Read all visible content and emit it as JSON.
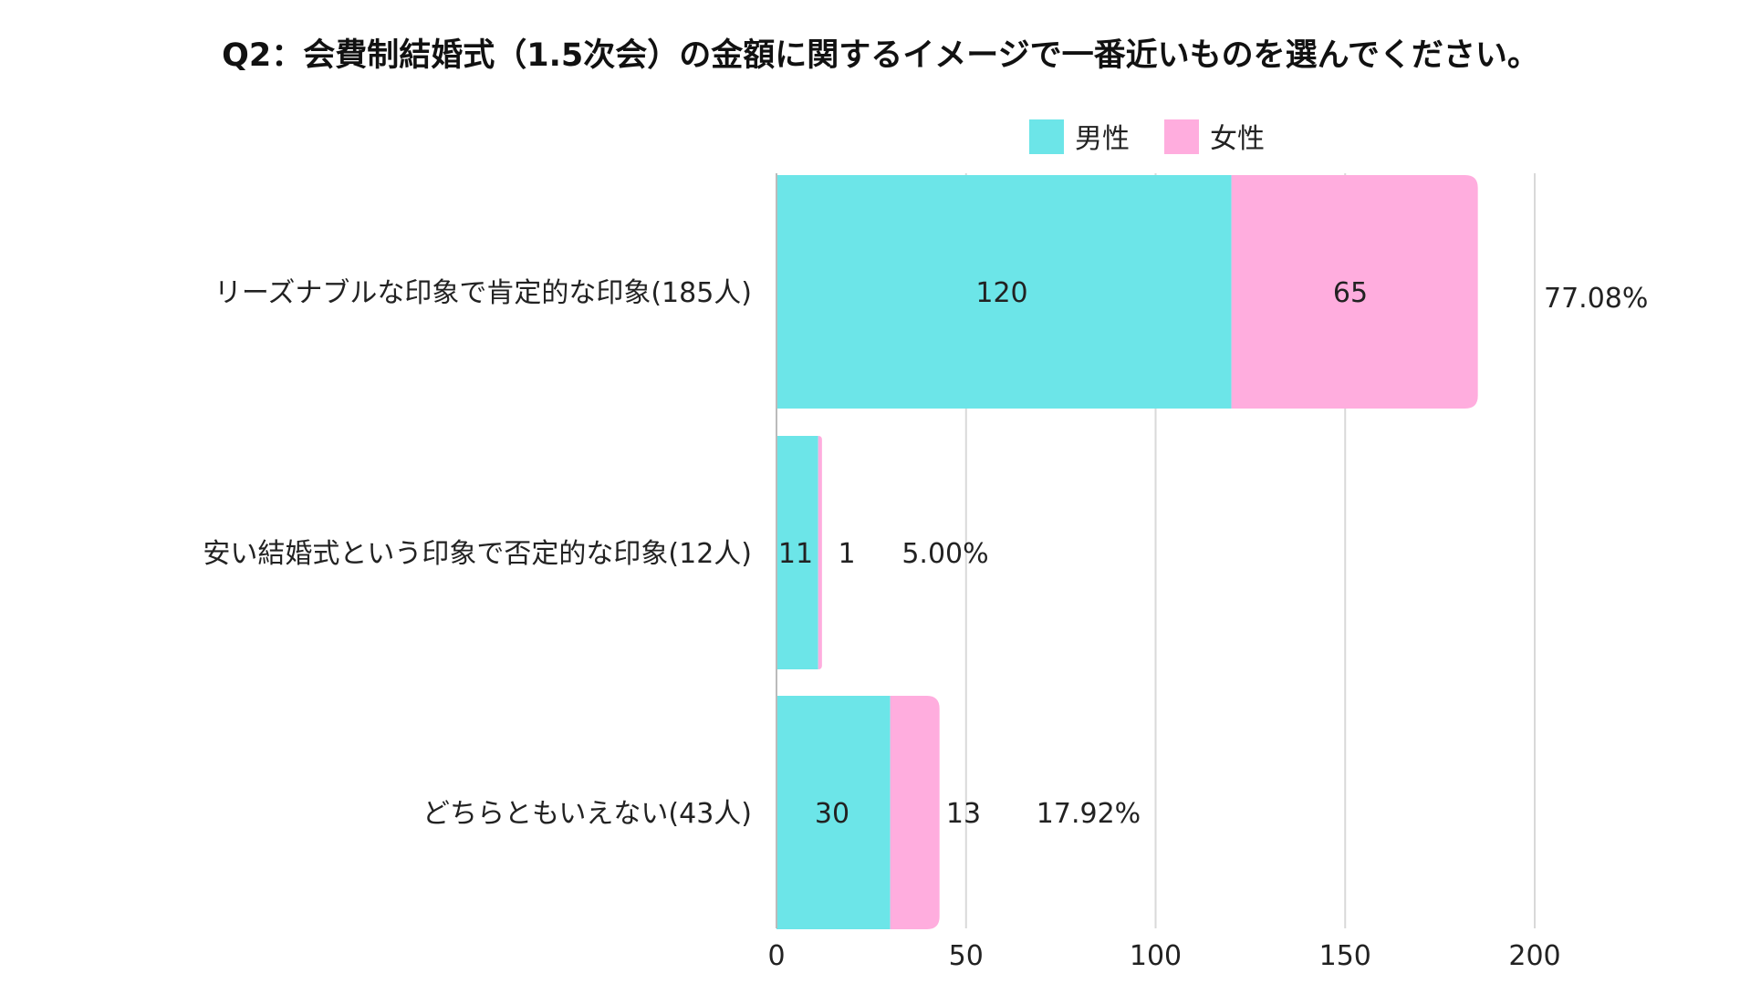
{
  "chart_data": {
    "type": "bar",
    "orientation": "horizontal",
    "stacked": true,
    "title": "Q2：会費制結婚式（1.5次会）の金額に関するイメージで一番近いものを選んでください。",
    "categories": [
      "リーズナブルな印象で肯定的な印象(185人)",
      "安い結婚式という印象で否定的な印象(12人)",
      "どちらともいえない(43人)"
    ],
    "series": [
      {
        "name": "男性",
        "color": "#6ce5e8",
        "values": [
          120,
          11,
          30
        ]
      },
      {
        "name": "女性",
        "color": "#ffadde",
        "values": [
          65,
          1,
          13
        ]
      }
    ],
    "value_labels": [
      [
        "120",
        "65"
      ],
      [
        "11",
        "1"
      ],
      [
        "30",
        "13"
      ]
    ],
    "percent_labels": [
      "77.08%",
      "5.00%",
      "17.92%"
    ],
    "xlim": [
      0,
      200
    ],
    "xticks": [
      "0",
      "50",
      "100",
      "150",
      "200"
    ],
    "xtick_values": [
      0,
      50,
      100,
      150,
      200
    ],
    "grid": "vertical",
    "legend_position": "top"
  }
}
